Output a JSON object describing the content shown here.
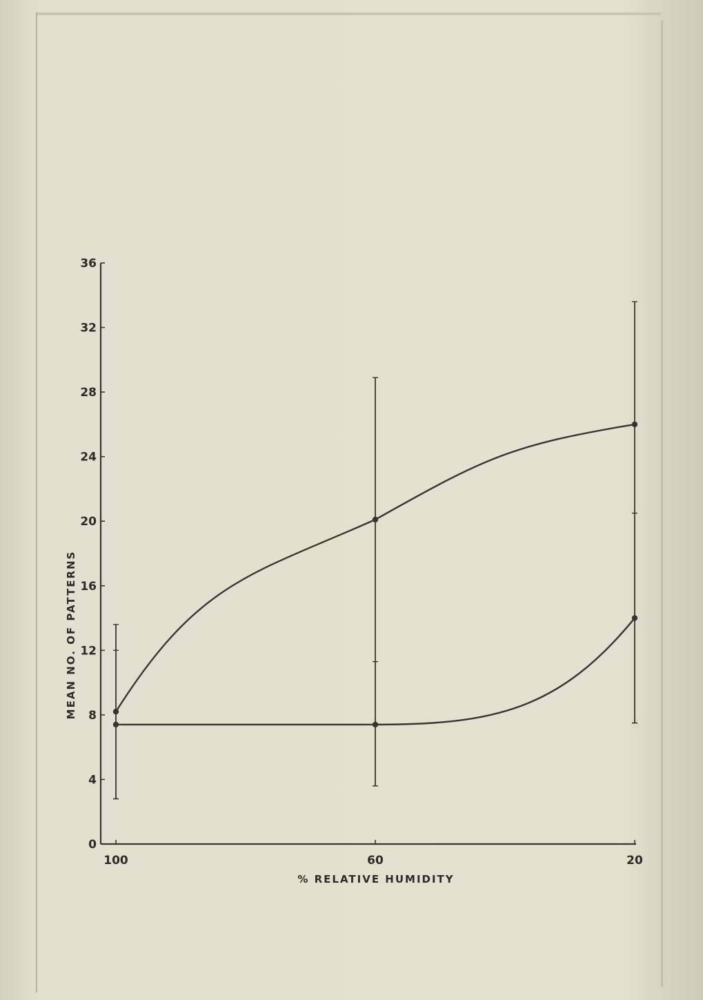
{
  "chart_data": {
    "type": "line",
    "title": "",
    "xlabel": "% RELATIVE HUMIDITY",
    "ylabel": "MEAN NO. OF PATTERNS",
    "x_ticks": [
      "100",
      "60",
      "20"
    ],
    "y_ticks": [
      "0",
      "4",
      "8",
      "12",
      "16",
      "20",
      "24",
      "28",
      "32",
      "36"
    ],
    "xlim": [
      100,
      20
    ],
    "ylim": [
      0,
      36
    ],
    "grid": false,
    "series": [
      {
        "x": [
          100,
          60,
          20
        ],
        "y": [
          8.2,
          20.1,
          26.0
        ],
        "error_low": [
          2.8,
          3.6,
          7.5
        ],
        "error_high": [
          13.6,
          28.9,
          33.6
        ]
      },
      {
        "x": [
          100,
          60,
          20
        ],
        "y": [
          7.4,
          7.4,
          14.0
        ],
        "error_low": [
          2.8,
          3.6,
          7.5
        ],
        "error_high": [
          12.0,
          11.3,
          20.5
        ]
      }
    ],
    "line_color": "#3a342c"
  }
}
